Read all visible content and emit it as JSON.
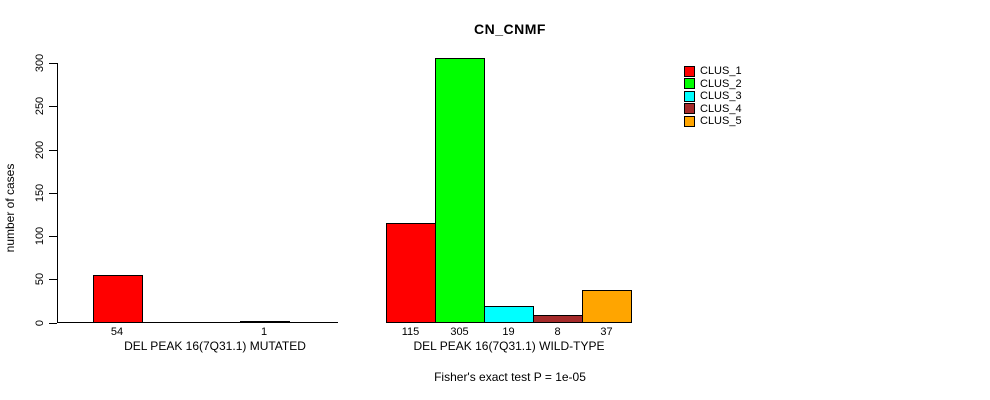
{
  "chart_data": {
    "type": "bar",
    "title": "CN_CNMF",
    "xlabel": "",
    "ylabel": "number of cases",
    "ylim": [
      0,
      300
    ],
    "yticks": [
      0,
      50,
      100,
      150,
      200,
      250,
      300
    ],
    "grid": false,
    "legend_position": "right",
    "categories": [
      "DEL PEAK 16(7Q31.1) MUTATED",
      "DEL PEAK 16(7Q31.1) WILD-TYPE"
    ],
    "series": [
      {
        "name": "CLUS_1",
        "color": "#ff0000",
        "values": [
          54,
          115
        ]
      },
      {
        "name": "CLUS_2",
        "color": "#00ff00",
        "values": [
          0,
          305
        ]
      },
      {
        "name": "CLUS_3",
        "color": "#00ffff",
        "values": [
          0,
          19
        ]
      },
      {
        "name": "CLUS_4",
        "color": "#a52a2a",
        "values": [
          1,
          8
        ]
      },
      {
        "name": "CLUS_5",
        "color": "#ffa500",
        "values": [
          0,
          37
        ]
      }
    ],
    "value_labels": [
      [
        "54",
        "",
        "",
        "1",
        ""
      ],
      [
        "115",
        "305",
        "19",
        "8",
        "37"
      ]
    ],
    "annotation": "Fisher's exact test P = 1e-05",
    "axis_color": "#000000"
  }
}
